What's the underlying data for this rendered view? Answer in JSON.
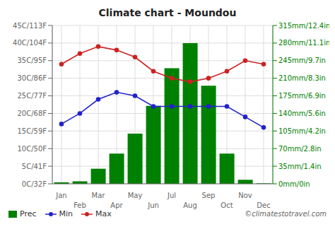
{
  "chart_data": {
    "type": "bar",
    "title": "Climate chart - Moundou",
    "categories": [
      "Jan",
      "Feb",
      "Mar",
      "Apr",
      "May",
      "Jun",
      "Jul",
      "Aug",
      "Sep",
      "Oct",
      "Nov",
      "Dec"
    ],
    "series": [
      {
        "name": "Prec",
        "type": "bar",
        "axis": "y2",
        "color": "#008000",
        "values": [
          3,
          5,
          30,
          60,
          100,
          155,
          230,
          280,
          195,
          60,
          8,
          1
        ]
      },
      {
        "name": "Min",
        "type": "line",
        "color": "#2222cc",
        "marker": "circle",
        "values": [
          17,
          20,
          24,
          26,
          25,
          22,
          22,
          22,
          22,
          22,
          19,
          16
        ]
      },
      {
        "name": "Max",
        "type": "line",
        "color": "#cc2222",
        "marker": "circle",
        "values": [
          34,
          37,
          39,
          38,
          36,
          32,
          30,
          29,
          30,
          32,
          35,
          34
        ]
      }
    ],
    "ylim": [
      0,
      45
    ],
    "yticks": [
      {
        "value": 0,
        "label": "0C/32F"
      },
      {
        "value": 5,
        "label": "5C/41F"
      },
      {
        "value": 10,
        "label": "10C/50F"
      },
      {
        "value": 15,
        "label": "15C/59F"
      },
      {
        "value": 20,
        "label": "20C/68F"
      },
      {
        "value": 25,
        "label": "25C/77F"
      },
      {
        "value": 30,
        "label": "30C/86F"
      },
      {
        "value": 35,
        "label": "35C/95F"
      },
      {
        "value": 40,
        "label": "40C/104F"
      },
      {
        "value": 45,
        "label": "45C/113F"
      }
    ],
    "y2lim": [
      0,
      315
    ],
    "y2ticks": [
      {
        "value": 0,
        "label": "0mm/0in"
      },
      {
        "value": 35,
        "label": "35mm/1.4in"
      },
      {
        "value": 70,
        "label": "70mm/2.8in"
      },
      {
        "value": 105,
        "label": "105mm/4.2in"
      },
      {
        "value": 140,
        "label": "140mm/5.6in"
      },
      {
        "value": 175,
        "label": "175mm/6.9in"
      },
      {
        "value": 210,
        "label": "210mm/8.3in"
      },
      {
        "value": 245,
        "label": "245mm/9.7in"
      },
      {
        "value": 280,
        "label": "280mm/11.1in"
      },
      {
        "value": 315,
        "label": "315mm/12.4in"
      }
    ],
    "grid": true,
    "legend": "lower left",
    "annotations": [
      "©climatestotravel.com"
    ]
  }
}
